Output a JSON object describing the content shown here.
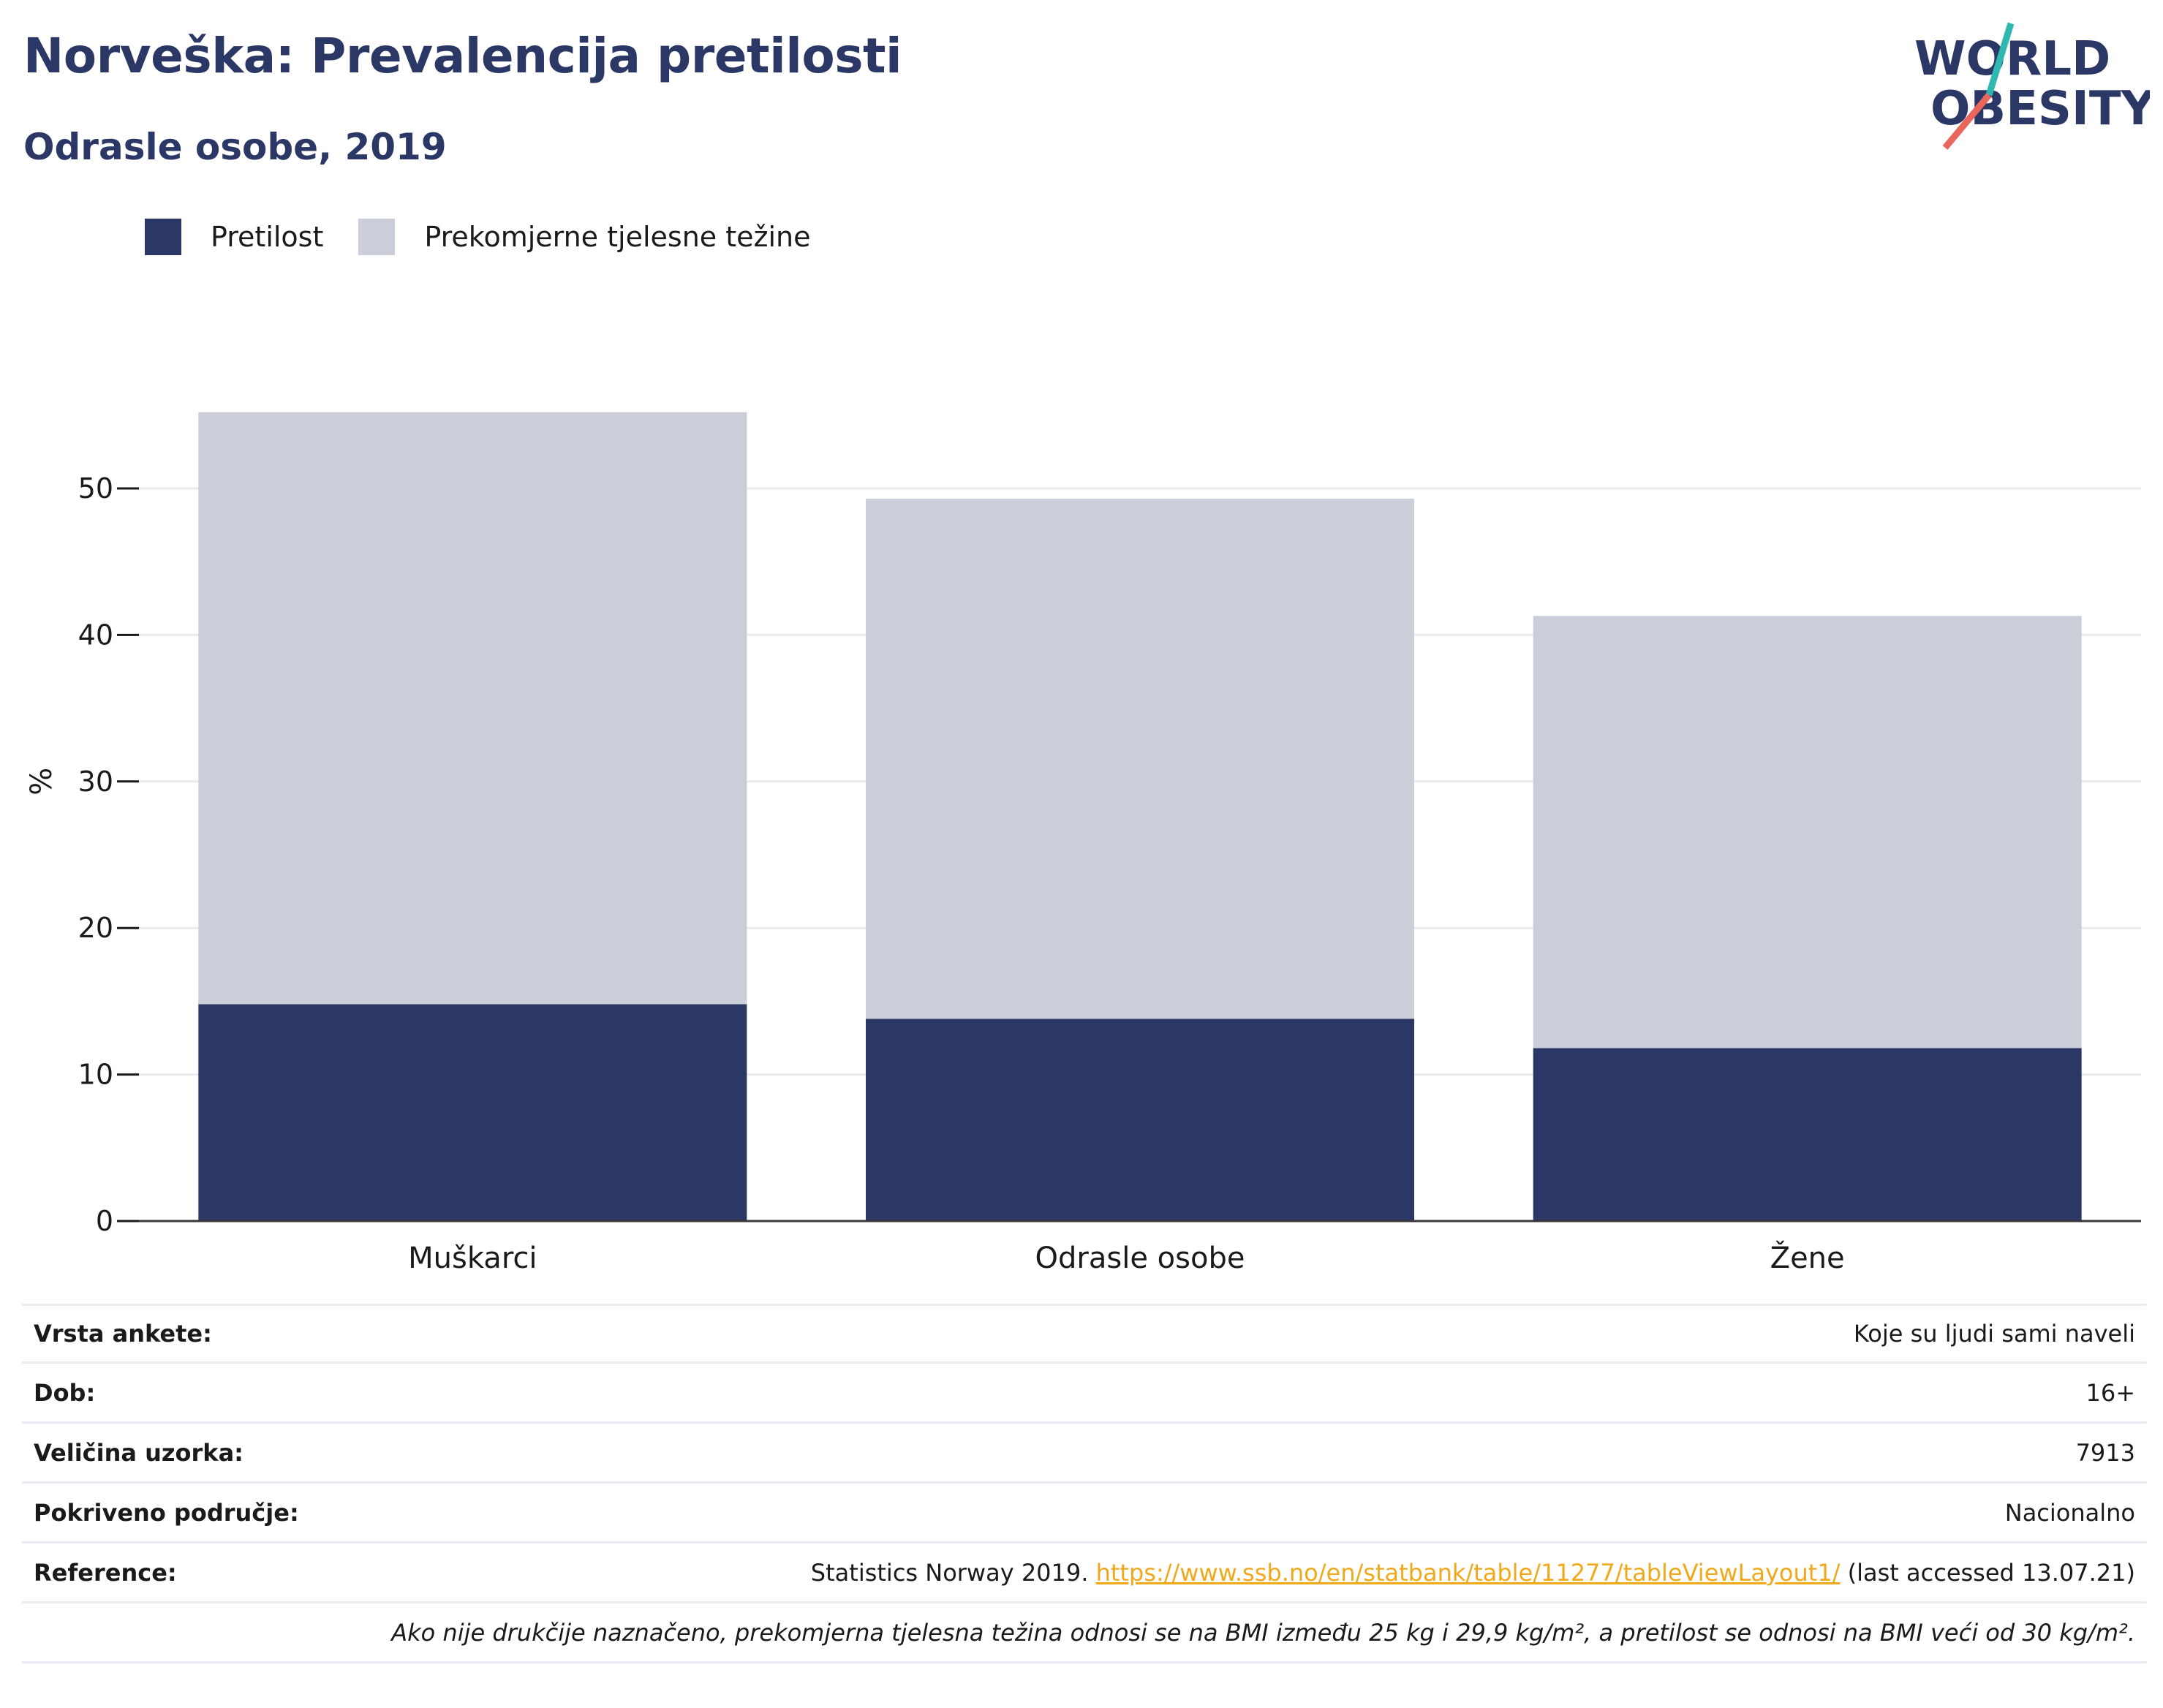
{
  "title": "Norveška: Prevalencija pretilosti",
  "subtitle": "Odrasle osobe, 2019",
  "logo": {
    "line1": "WORLD",
    "line2": "OBESITY"
  },
  "colors": {
    "obesity": "#2b3765",
    "overweight": "#cbcdd8",
    "title": "#2b3765",
    "link": "#f0a91b",
    "logo_teal": "#2fb8b0",
    "logo_red": "#e8675a"
  },
  "legend": [
    {
      "label": "Pretilost",
      "color": "#2b3765"
    },
    {
      "label": "Prekomjerne tjelesne težine",
      "color": "#cbcdd8"
    }
  ],
  "chart_data": {
    "type": "bar",
    "stacked": true,
    "categories": [
      "Muškarci",
      "Odrasle osobe",
      "Žene"
    ],
    "series": [
      {
        "name": "Pretilost",
        "values": [
          14.8,
          13.8,
          11.8
        ]
      },
      {
        "name": "Prekomjerne tjelesne težine",
        "values": [
          40.4,
          35.5,
          29.5
        ]
      }
    ],
    "ylabel": "%",
    "ylim": [
      0,
      55
    ],
    "yticks": [
      0,
      10,
      20,
      30,
      40,
      50
    ],
    "grid": true
  },
  "info": [
    {
      "key": "Vrsta ankete:",
      "value": "Koje su ljudi sami naveli"
    },
    {
      "key": "Dob:",
      "value": "16+"
    },
    {
      "key": "Veličina uzorka:",
      "value": "7913"
    },
    {
      "key": "Pokriveno područje:",
      "value": "Nacionalno"
    }
  ],
  "reference": {
    "key": "Reference:",
    "prefix": "Statistics Norway 2019. ",
    "link": "https://www.ssb.no/en/statbank/table/11277/tableViewLayout1/",
    "suffix": " (last accessed 13.07.21)"
  },
  "note": "Ako nije drukčije naznačeno, prekomjerna tjelesna težina odnosi se na BMI između 25 kg i 29,9 kg/m², a pretilost se odnosi na BMI veći od 30 kg/m²."
}
